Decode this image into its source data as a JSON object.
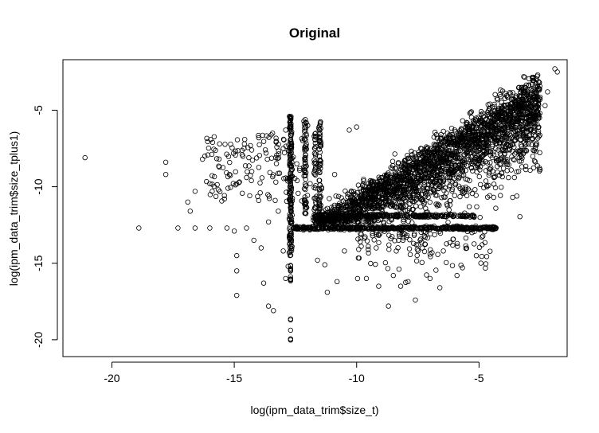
{
  "chart_data": {
    "type": "scatter",
    "title": "Original",
    "xlabel": "log(ipm_data_trim$size_t)",
    "ylabel": "log(ipm_data_trim$size_tplus1)",
    "xlim": [
      -22,
      -1.4
    ],
    "ylim": [
      -21.1,
      -1.7
    ],
    "x_ticks": [
      -20,
      -15,
      -10,
      -5
    ],
    "y_ticks": [
      -20,
      -15,
      -10,
      -5
    ],
    "x_tick_labels": [
      "-20",
      "-15",
      "-10",
      "-5"
    ],
    "y_tick_labels": [
      "-20",
      "-15",
      "-10",
      "-5"
    ],
    "marker": "open-circle",
    "marker_color": "#000000",
    "grid": false,
    "legend": "none",
    "points": [
      [
        -21.1,
        -8.1
      ],
      [
        -18.9,
        -12.7
      ],
      [
        -17.8,
        -8.4
      ],
      [
        -17.8,
        -9.2
      ],
      [
        -17.3,
        -12.7
      ],
      [
        -16.9,
        -11.0
      ],
      [
        -16.8,
        -11.6
      ],
      [
        -16.6,
        -10.3
      ],
      [
        -16.6,
        -12.7
      ],
      [
        -16.3,
        -8.2
      ],
      [
        -16.2,
        -8.0
      ],
      [
        -16.0,
        -9.8
      ],
      [
        -16.0,
        -12.7
      ],
      [
        -15.9,
        -10.3
      ],
      [
        -15.6,
        -7.2
      ],
      [
        -15.4,
        -10.8
      ],
      [
        -15.3,
        -12.7
      ],
      [
        -15.2,
        -9.2
      ],
      [
        -15.0,
        -12.9
      ],
      [
        -14.9,
        -14.5
      ],
      [
        -14.9,
        -15.5
      ],
      [
        -14.9,
        -17.1
      ],
      [
        -14.6,
        -7.5
      ],
      [
        -14.5,
        -9.4
      ],
      [
        -14.5,
        -12.7
      ],
      [
        -14.3,
        -9.6
      ],
      [
        -14.2,
        -13.5
      ],
      [
        -14.0,
        -6.8
      ],
      [
        -14.0,
        -10.9
      ],
      [
        -13.9,
        -14.0
      ],
      [
        -13.8,
        -16.3
      ],
      [
        -13.7,
        -7.8
      ],
      [
        -13.6,
        -12.3
      ],
      [
        -13.6,
        -17.8
      ],
      [
        -13.4,
        -18.1
      ],
      [
        -13.3,
        -9.7
      ],
      [
        -13.2,
        -11.6
      ],
      [
        -13.0,
        -7.5
      ],
      [
        -13.0,
        -14.2
      ],
      [
        -12.9,
        -6.3
      ],
      [
        -12.8,
        -15.2
      ],
      [
        -12.9,
        -16.0
      ],
      [
        -12.2,
        -7.0
      ],
      [
        -12.0,
        -6.0
      ],
      [
        -11.9,
        -9.8
      ],
      [
        -11.6,
        -14.8
      ],
      [
        -11.5,
        -9.9
      ],
      [
        -11.3,
        -15.1
      ],
      [
        -11.2,
        -16.9
      ],
      [
        -10.9,
        -9.2
      ],
      [
        -10.8,
        -16.2
      ],
      [
        -10.5,
        -14.2
      ],
      [
        -10.3,
        -6.3
      ],
      [
        -10.0,
        -6.1
      ],
      [
        -9.6,
        -16.0
      ],
      [
        -9.2,
        -14.0
      ],
      [
        -9.1,
        -16.5
      ],
      [
        -8.9,
        -11.3
      ],
      [
        -8.7,
        -17.8
      ],
      [
        -8.5,
        -15.8
      ],
      [
        -8.2,
        -16.5
      ],
      [
        -7.9,
        -16.2
      ],
      [
        -7.6,
        -17.4
      ],
      [
        -7.2,
        -13.3
      ],
      [
        -7.0,
        -16.0
      ],
      [
        -6.6,
        -16.6
      ],
      [
        -5.9,
        -15.8
      ],
      [
        -5.6,
        -12.7
      ],
      [
        -5.2,
        -12.0
      ],
      [
        -4.4,
        -10.7
      ],
      [
        -4.0,
        -8.8
      ],
      [
        -3.6,
        -8.2
      ],
      [
        -3.2,
        -6.6
      ],
      [
        -2.8,
        -5.0
      ],
      [
        -2.6,
        -5.3
      ],
      [
        -2.2,
        -3.8
      ],
      [
        -2.3,
        -4.7
      ],
      [
        -1.8,
        -2.5
      ],
      [
        -1.9,
        -2.3
      ],
      [
        -2.6,
        -2.7
      ]
    ]
  }
}
